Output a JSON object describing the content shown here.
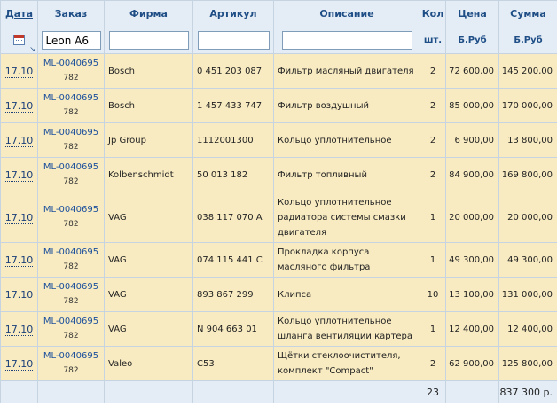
{
  "headers": {
    "date": "Дата",
    "order": "Заказ",
    "firm": "Фирма",
    "article": "Артикул",
    "description": "Описание",
    "qty": "Кол",
    "price": "Цена",
    "sum": "Сумма"
  },
  "filters": {
    "order_value": "Leon A6",
    "firm_value": "",
    "article_value": "",
    "description_value": "",
    "qty_unit": "шт.",
    "price_unit": "Б.Руб",
    "sum_unit": "Б.Руб",
    "calendar_icon": "calendar-icon",
    "sort_icon": "sort-arrow-icon",
    "sort_glyph": "↘"
  },
  "rows": [
    {
      "date": "17.10",
      "order": "ML-0040695",
      "order_sub": "782",
      "firm": "Bosch",
      "article": "0 451 203 087",
      "description": "Фильтр масляный двигателя",
      "qty": "2",
      "price": "72 600,00",
      "sum": "145 200,00"
    },
    {
      "date": "17.10",
      "order": "ML-0040695",
      "order_sub": "782",
      "firm": "Bosch",
      "article": "1 457 433 747",
      "description": "Фильтр воздушный",
      "qty": "2",
      "price": "85 000,00",
      "sum": "170 000,00"
    },
    {
      "date": "17.10",
      "order": "ML-0040695",
      "order_sub": "782",
      "firm": "Jp Group",
      "article": "1112001300",
      "description": "Кольцо уплотнительное",
      "qty": "2",
      "price": "6 900,00",
      "sum": "13 800,00"
    },
    {
      "date": "17.10",
      "order": "ML-0040695",
      "order_sub": "782",
      "firm": "Kolbenschmidt",
      "article": "50 013 182",
      "description": "Фильтр топливный",
      "qty": "2",
      "price": "84 900,00",
      "sum": "169 800,00"
    },
    {
      "date": "17.10",
      "order": "ML-0040695",
      "order_sub": "782",
      "firm": "VAG",
      "article": "038 117 070 A",
      "description": "Кольцо уплотнительное радиатора системы смазки двигателя",
      "qty": "1",
      "price": "20 000,00",
      "sum": "20 000,00"
    },
    {
      "date": "17.10",
      "order": "ML-0040695",
      "order_sub": "782",
      "firm": "VAG",
      "article": "074 115 441 C",
      "description": "Прокладка корпуса масляного фильтра",
      "qty": "1",
      "price": "49 300,00",
      "sum": "49 300,00"
    },
    {
      "date": "17.10",
      "order": "ML-0040695",
      "order_sub": "782",
      "firm": "VAG",
      "article": "893 867 299",
      "description": "Клипса",
      "qty": "10",
      "price": "13 100,00",
      "sum": "131 000,00"
    },
    {
      "date": "17.10",
      "order": "ML-0040695",
      "order_sub": "782",
      "firm": "VAG",
      "article": "N 904 663 01",
      "description": "Кольцо уплотнительное шланга вентиляции картера",
      "qty": "1",
      "price": "12 400,00",
      "sum": "12 400,00"
    },
    {
      "date": "17.10",
      "order": "ML-0040695",
      "order_sub": "782",
      "firm": "Valeo",
      "article": "C53",
      "description": "Щётки стеклоочистителя, комплект \"Compact\"",
      "qty": "2",
      "price": "62 900,00",
      "sum": "125 800,00"
    }
  ],
  "totals": {
    "qty": "23",
    "sum": "837 300 р."
  },
  "colors": {
    "header_bg": "#e4edf6",
    "header_text": "#1f4e86",
    "row_bg": "#f8ebc1",
    "grid": "#c6d3e1",
    "link": "#1b4f9c"
  }
}
